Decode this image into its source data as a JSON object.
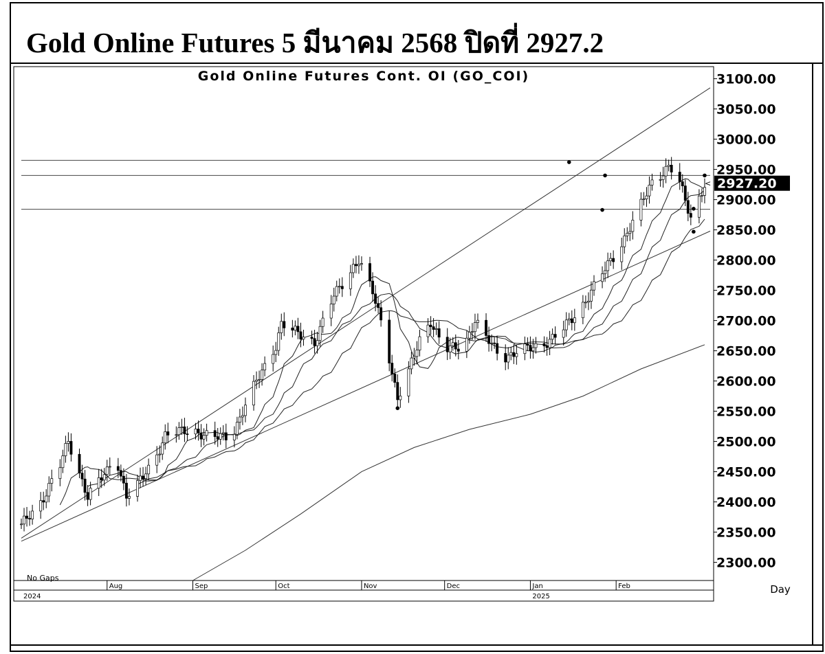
{
  "page": {
    "heading": "Gold Online Futures 5 มีนาคม 2568 ปิดที่ 2927.2"
  },
  "chart_data": {
    "type": "candlestick",
    "title": "Gold Online Futures Cont. OI (GO_COI)",
    "footnote": "No Gaps",
    "period_label": "Day",
    "ylim": [
      2270,
      3120
    ],
    "y_ticks": [
      "3100.00",
      "3050.00",
      "3000.00",
      "2950.00",
      "2900.00",
      "2850.00",
      "2800.00",
      "2750.00",
      "2700.00",
      "2650.00",
      "2600.00",
      "2550.00",
      "2500.00",
      "2450.00",
      "2400.00",
      "2350.00",
      "2300.00"
    ],
    "last_price_label": "2927.20",
    "last_price": 2927.2,
    "x_range": [
      "2024-07-01",
      "2025-03-07"
    ],
    "x_months": [
      {
        "date": "2024-08-01",
        "label": "Aug"
      },
      {
        "date": "2024-09-01",
        "label": "Sep"
      },
      {
        "date": "2024-10-01",
        "label": "Oct"
      },
      {
        "date": "2024-11-01",
        "label": "Nov"
      },
      {
        "date": "2024-12-01",
        "label": "Dec"
      },
      {
        "date": "2025-01-01",
        "label": "Jan"
      },
      {
        "date": "2025-02-01",
        "label": "Feb"
      }
    ],
    "x_years": [
      {
        "date": "2024-07-01",
        "label": "2024"
      },
      {
        "date": "2025-01-01",
        "label": "2025"
      }
    ],
    "close_path": [
      [
        "2024-07-01",
        2360
      ],
      [
        "2024-07-08",
        2400
      ],
      [
        "2024-07-15",
        2460
      ],
      [
        "2024-07-18",
        2500
      ],
      [
        "2024-07-25",
        2410
      ],
      [
        "2024-08-01",
        2450
      ],
      [
        "2024-08-04",
        2480
      ],
      [
        "2024-08-08",
        2410
      ],
      [
        "2024-08-11",
        2420
      ],
      [
        "2024-08-18",
        2470
      ],
      [
        "2024-08-22",
        2510
      ],
      [
        "2024-09-01",
        2520
      ],
      [
        "2024-09-08",
        2505
      ],
      [
        "2024-09-15",
        2510
      ],
      [
        "2024-09-22",
        2580
      ],
      [
        "2024-10-01",
        2660
      ],
      [
        "2024-10-03",
        2695
      ],
      [
        "2024-10-08",
        2680
      ],
      [
        "2024-10-15",
        2665
      ],
      [
        "2024-10-22",
        2740
      ],
      [
        "2024-10-29",
        2790
      ],
      [
        "2024-10-31",
        2800
      ],
      [
        "2024-11-05",
        2745
      ],
      [
        "2024-11-08",
        2700
      ],
      [
        "2024-11-11",
        2640
      ],
      [
        "2024-11-14",
        2570
      ],
      [
        "2024-11-17",
        2600
      ],
      [
        "2024-11-22",
        2670
      ],
      [
        "2024-11-26",
        2700
      ],
      [
        "2024-12-01",
        2650
      ],
      [
        "2024-12-08",
        2660
      ],
      [
        "2024-12-12",
        2700
      ],
      [
        "2024-12-15",
        2675
      ],
      [
        "2024-12-22",
        2640
      ],
      [
        "2024-12-29",
        2650
      ],
      [
        "2025-01-05",
        2660
      ],
      [
        "2025-01-12",
        2680
      ],
      [
        "2025-01-19",
        2720
      ],
      [
        "2025-01-26",
        2770
      ],
      [
        "2025-02-02",
        2820
      ],
      [
        "2025-02-09",
        2880
      ],
      [
        "2025-02-14",
        2930
      ],
      [
        "2025-02-20",
        2955
      ],
      [
        "2025-02-23",
        2940
      ],
      [
        "2025-02-28",
        2870
      ],
      [
        "2025-03-05",
        2927
      ]
    ],
    "high_dots": [
      {
        "date": "2025-01-15",
        "price": 2962
      },
      {
        "date": "2025-01-28",
        "price": 2940
      },
      {
        "date": "2025-01-27",
        "price": 2883
      },
      {
        "date": "2025-03-05",
        "price": 2940
      },
      {
        "date": "2025-03-01",
        "price": 2885
      },
      {
        "date": "2024-11-14",
        "price": 2555
      },
      {
        "date": "2025-02-29",
        "price": 2847
      }
    ],
    "horizontal_lines": [
      2965,
      2940,
      2884
    ],
    "trend_lines": [
      {
        "from": [
          "2024-07-01",
          2335
        ],
        "to": [
          "2025-03-07",
          2848
        ]
      },
      {
        "from": [
          "2024-07-01",
          2340
        ],
        "to": [
          "2025-03-07",
          3085
        ]
      }
    ],
    "long_ma": [
      [
        "2024-09-01",
        2270
      ],
      [
        "2024-09-20",
        2320
      ],
      [
        "2024-10-10",
        2380
      ],
      [
        "2024-11-01",
        2450
      ],
      [
        "2024-11-20",
        2490
      ],
      [
        "2024-12-10",
        2520
      ],
      [
        "2025-01-01",
        2545
      ],
      [
        "2025-01-20",
        2575
      ],
      [
        "2025-02-10",
        2620
      ],
      [
        "2025-03-05",
        2660
      ]
    ],
    "ma_periods_days": [
      10,
      18,
      30
    ]
  }
}
